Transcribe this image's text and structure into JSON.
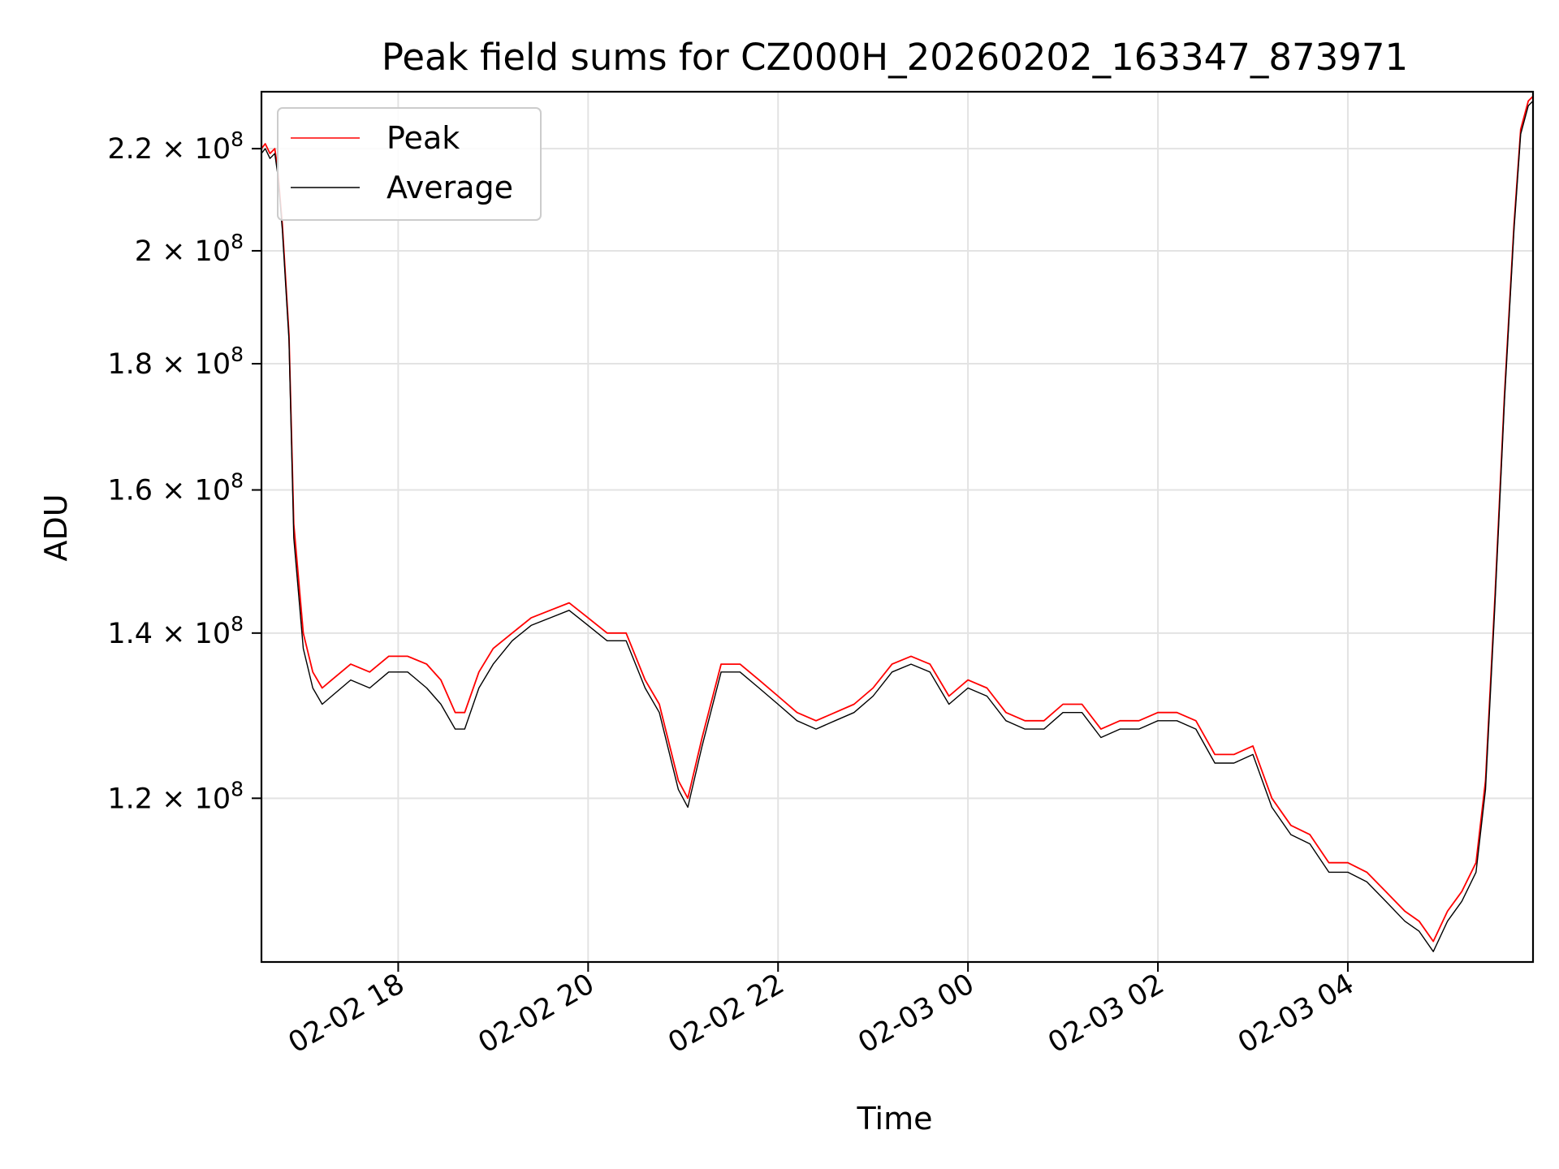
{
  "chart_data": {
    "type": "line",
    "title": "Peak field sums for CZ000H_20260202_163347_873971",
    "xlabel": "Time",
    "ylabel": "ADU",
    "yscale": "log",
    "grid": true,
    "legend_position": "top-left",
    "xlim_hours": [
      16.56,
      29.95
    ],
    "ylim": [
      103000000,
      232000000
    ],
    "x_ticks": [
      {
        "hour": 18,
        "label": "02-02 18"
      },
      {
        "hour": 20,
        "label": "02-02 20"
      },
      {
        "hour": 22,
        "label": "02-02 22"
      },
      {
        "hour": 24,
        "label": "02-03 00"
      },
      {
        "hour": 26,
        "label": "02-03 02"
      },
      {
        "hour": 28,
        "label": "02-03 04"
      }
    ],
    "y_ticks": [
      {
        "value": 120000000,
        "mantissa": "1.2",
        "exp": "8"
      },
      {
        "value": 140000000,
        "mantissa": "1.4",
        "exp": "8"
      },
      {
        "value": 160000000,
        "mantissa": "1.6",
        "exp": "8"
      },
      {
        "value": 180000000,
        "mantissa": "1.8",
        "exp": "8"
      },
      {
        "value": 200000000,
        "mantissa": "2",
        "exp": "8"
      },
      {
        "value": 220000000,
        "mantissa": "2.2",
        "exp": "8"
      }
    ],
    "x_hours": [
      16.56,
      16.6,
      16.65,
      16.7,
      16.73,
      16.78,
      16.85,
      16.9,
      17.0,
      17.1,
      17.2,
      17.3,
      17.5,
      17.7,
      17.9,
      18.1,
      18.3,
      18.45,
      18.6,
      18.7,
      18.85,
      19.0,
      19.2,
      19.4,
      19.6,
      19.8,
      20.0,
      20.2,
      20.4,
      20.6,
      20.75,
      20.95,
      21.05,
      21.2,
      21.4,
      21.6,
      21.8,
      22.0,
      22.2,
      22.4,
      22.6,
      22.8,
      23.0,
      23.2,
      23.4,
      23.6,
      23.8,
      24.0,
      24.2,
      24.4,
      24.6,
      24.8,
      25.0,
      25.2,
      25.4,
      25.6,
      25.8,
      26.0,
      26.2,
      26.4,
      26.6,
      26.8,
      27.0,
      27.2,
      27.4,
      27.6,
      27.8,
      28.0,
      28.2,
      28.4,
      28.6,
      28.75,
      28.9,
      29.05,
      29.2,
      29.35,
      29.45,
      29.55,
      29.65,
      29.75,
      29.82,
      29.9,
      29.95
    ],
    "series": [
      {
        "name": "Peak",
        "color": "#ff0000",
        "values": [
          220,
          221,
          219,
          220,
          216,
          205,
          185,
          155,
          140,
          135,
          133,
          134,
          136,
          135,
          137,
          137,
          136,
          134,
          130,
          130,
          135,
          138,
          140,
          142,
          143,
          144,
          142,
          140,
          140,
          134,
          131,
          122,
          120,
          127,
          136,
          136,
          134,
          132,
          130,
          129,
          130,
          131,
          133,
          136,
          137,
          136,
          132,
          134,
          133,
          130,
          129,
          129,
          131,
          131,
          128,
          129,
          129,
          130,
          130,
          129,
          125,
          125,
          126,
          120,
          117,
          116,
          113,
          113,
          112,
          110,
          108,
          107,
          105,
          108,
          110,
          113,
          122,
          145,
          175,
          205,
          224,
          230,
          231
        ]
      },
      {
        "name": "Average",
        "color": "#000000",
        "values": [
          219,
          220,
          218,
          219,
          215,
          204,
          184,
          153,
          138,
          133,
          131,
          132,
          134,
          133,
          135,
          135,
          133,
          131,
          128,
          128,
          133,
          136,
          139,
          141,
          142,
          143,
          141,
          139,
          139,
          133,
          130,
          121,
          119,
          126,
          135,
          135,
          133,
          131,
          129,
          128,
          129,
          130,
          132,
          135,
          136,
          135,
          131,
          133,
          132,
          129,
          128,
          128,
          130,
          130,
          127,
          128,
          128,
          129,
          129,
          128,
          124,
          124,
          125,
          119,
          116,
          115,
          112,
          112,
          111,
          109,
          107,
          106,
          104,
          107,
          109,
          112,
          121,
          144,
          174,
          204,
          223,
          229,
          230
        ]
      }
    ],
    "value_unit": "1e6 ADU"
  }
}
